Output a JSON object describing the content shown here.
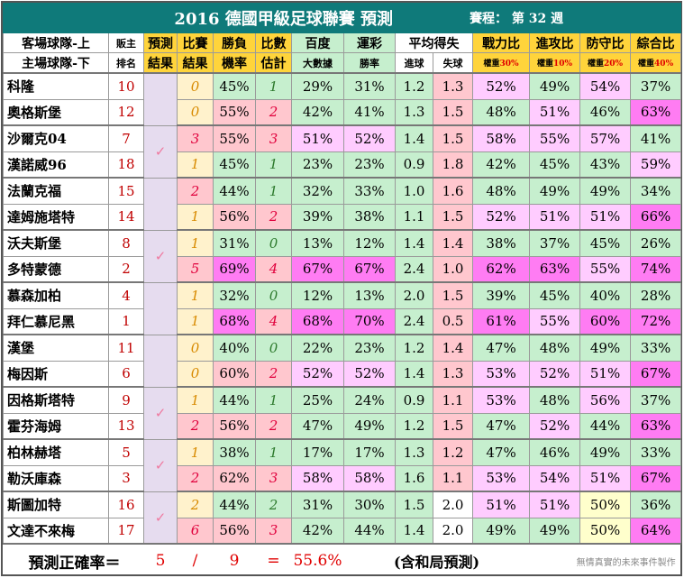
{
  "title": "2016 德國甲級足球聯賽  預測",
  "schedule": "賽程：  第 32 週",
  "headers": {
    "team_away": "客場球隊-上",
    "team_home": "主場球隊-下",
    "rank1": "販主",
    "rank2": "排名",
    "pred1": "預測",
    "pred2": "結果",
    "score1": "比賽",
    "score2": "結果",
    "win1": "勝負",
    "win2": "機率",
    "goals1": "比數",
    "goals2": "估計",
    "baidu1": "百度",
    "baidu2": "大數據",
    "lottery1": "運彩",
    "lottery2": "勝率",
    "avg": "平均得失",
    "avg_in": "進球",
    "avg_out": "失球",
    "combat": "戰力比",
    "combat_w_label": "權重",
    "combat_w": "30%",
    "attack": "進攻比",
    "attack_w_label": "權重",
    "attack_w": "10%",
    "defense": "防守比",
    "defense_w_label": "權重",
    "defense_w": "20%",
    "overall": "綜合比",
    "overall_w_label": "權重",
    "overall_w": "40%"
  },
  "matches": [
    {
      "predicted": false,
      "teams": [
        {
          "name": "科隆",
          "rank": "10",
          "score": "0",
          "win": "45%",
          "est": "1",
          "baidu": "29%",
          "lottery": "31%",
          "gin": "1.2",
          "gout": "1.3",
          "combat": "52%",
          "attack": "49%",
          "defense": "54%",
          "overall": "37%"
        },
        {
          "name": "奧格斯堡",
          "rank": "12",
          "score": "0",
          "win": "55%",
          "est": "2",
          "baidu": "42%",
          "lottery": "41%",
          "gin": "1.3",
          "gout": "1.5",
          "combat": "48%",
          "attack": "51%",
          "defense": "46%",
          "overall": "63%"
        }
      ]
    },
    {
      "predicted": true,
      "teams": [
        {
          "name": "沙爾克04",
          "rank": "7",
          "score": "3",
          "win": "55%",
          "est": "3",
          "baidu": "51%",
          "lottery": "52%",
          "gin": "1.4",
          "gout": "1.5",
          "combat": "58%",
          "attack": "55%",
          "defense": "57%",
          "overall": "41%"
        },
        {
          "name": "漢諾威96",
          "rank": "18",
          "score": "1",
          "win": "45%",
          "est": "1",
          "baidu": "23%",
          "lottery": "23%",
          "gin": "0.9",
          "gout": "1.8",
          "combat": "42%",
          "attack": "45%",
          "defense": "43%",
          "overall": "59%"
        }
      ]
    },
    {
      "predicted": false,
      "teams": [
        {
          "name": "法蘭克福",
          "rank": "15",
          "score": "2",
          "win": "44%",
          "est": "1",
          "baidu": "32%",
          "lottery": "33%",
          "gin": "1.0",
          "gout": "1.6",
          "combat": "48%",
          "attack": "49%",
          "defense": "49%",
          "overall": "34%"
        },
        {
          "name": "達姆施塔特",
          "rank": "14",
          "score": "1",
          "win": "56%",
          "est": "2",
          "baidu": "39%",
          "lottery": "38%",
          "gin": "1.1",
          "gout": "1.5",
          "combat": "52%",
          "attack": "51%",
          "defense": "51%",
          "overall": "66%"
        }
      ]
    },
    {
      "predicted": true,
      "teams": [
        {
          "name": "沃夫斯堡",
          "rank": "8",
          "score": "1",
          "win": "31%",
          "est": "0",
          "baidu": "13%",
          "lottery": "12%",
          "gin": "1.4",
          "gout": "1.4",
          "combat": "38%",
          "attack": "37%",
          "defense": "45%",
          "overall": "26%"
        },
        {
          "name": "多特蒙德",
          "rank": "2",
          "score": "5",
          "win": "69%",
          "est": "4",
          "baidu": "67%",
          "lottery": "67%",
          "gin": "2.4",
          "gout": "1.0",
          "combat": "62%",
          "attack": "63%",
          "defense": "55%",
          "overall": "74%"
        }
      ]
    },
    {
      "predicted": false,
      "teams": [
        {
          "name": "慕森加柏",
          "rank": "4",
          "score": "1",
          "win": "32%",
          "est": "0",
          "baidu": "12%",
          "lottery": "13%",
          "gin": "2.0",
          "gout": "1.5",
          "combat": "39%",
          "attack": "45%",
          "defense": "40%",
          "overall": "28%"
        },
        {
          "name": "拜仁慕尼黑",
          "rank": "1",
          "score": "1",
          "win": "68%",
          "est": "4",
          "baidu": "68%",
          "lottery": "70%",
          "gin": "2.4",
          "gout": "0.5",
          "combat": "61%",
          "attack": "55%",
          "defense": "60%",
          "overall": "72%"
        }
      ]
    },
    {
      "predicted": false,
      "teams": [
        {
          "name": "漢堡",
          "rank": "11",
          "score": "0",
          "win": "40%",
          "est": "0",
          "baidu": "22%",
          "lottery": "23%",
          "gin": "1.2",
          "gout": "1.4",
          "combat": "47%",
          "attack": "48%",
          "defense": "49%",
          "overall": "33%"
        },
        {
          "name": "梅因斯",
          "rank": "6",
          "score": "0",
          "win": "60%",
          "est": "2",
          "baidu": "52%",
          "lottery": "52%",
          "gin": "1.4",
          "gout": "1.3",
          "combat": "53%",
          "attack": "52%",
          "defense": "51%",
          "overall": "67%"
        }
      ]
    },
    {
      "predicted": true,
      "teams": [
        {
          "name": "因格斯塔特",
          "rank": "9",
          "score": "1",
          "win": "44%",
          "est": "1",
          "baidu": "25%",
          "lottery": "24%",
          "gin": "0.9",
          "gout": "1.1",
          "combat": "53%",
          "attack": "48%",
          "defense": "56%",
          "overall": "37%"
        },
        {
          "name": "霍芬海姆",
          "rank": "13",
          "score": "2",
          "win": "56%",
          "est": "2",
          "baidu": "47%",
          "lottery": "49%",
          "gin": "1.2",
          "gout": "1.5",
          "combat": "47%",
          "attack": "52%",
          "defense": "44%",
          "overall": "63%"
        }
      ]
    },
    {
      "predicted": true,
      "teams": [
        {
          "name": "柏林赫塔",
          "rank": "5",
          "score": "1",
          "win": "38%",
          "est": "1",
          "baidu": "17%",
          "lottery": "17%",
          "gin": "1.3",
          "gout": "1.2",
          "combat": "47%",
          "attack": "46%",
          "defense": "49%",
          "overall": "33%"
        },
        {
          "name": "勒沃庫森",
          "rank": "3",
          "score": "2",
          "win": "62%",
          "est": "3",
          "baidu": "58%",
          "lottery": "58%",
          "gin": "1.6",
          "gout": "1.1",
          "combat": "53%",
          "attack": "54%",
          "defense": "51%",
          "overall": "67%"
        }
      ]
    },
    {
      "predicted": true,
      "teams": [
        {
          "name": "斯圖加特",
          "rank": "16",
          "score": "2",
          "win": "44%",
          "est": "2",
          "baidu": "31%",
          "lottery": "30%",
          "gin": "1.5",
          "gout": "2.0",
          "combat": "51%",
          "attack": "51%",
          "defense": "50%",
          "overall": "36%"
        },
        {
          "name": "文達不來梅",
          "rank": "17",
          "score": "6",
          "win": "56%",
          "est": "3",
          "baidu": "42%",
          "lottery": "44%",
          "gin": "1.4",
          "gout": "2.0",
          "combat": "49%",
          "attack": "49%",
          "defense": "50%",
          "overall": "64%"
        }
      ]
    }
  ],
  "check_icon": "✓",
  "footer": {
    "label": "預測正確率＝",
    "correct": "5",
    "slash": "/",
    "total": "9",
    "eq": "=",
    "rate": "55.6%",
    "note": "(含和局預測)",
    "credit": "無情真實的未來事件製作"
  }
}
